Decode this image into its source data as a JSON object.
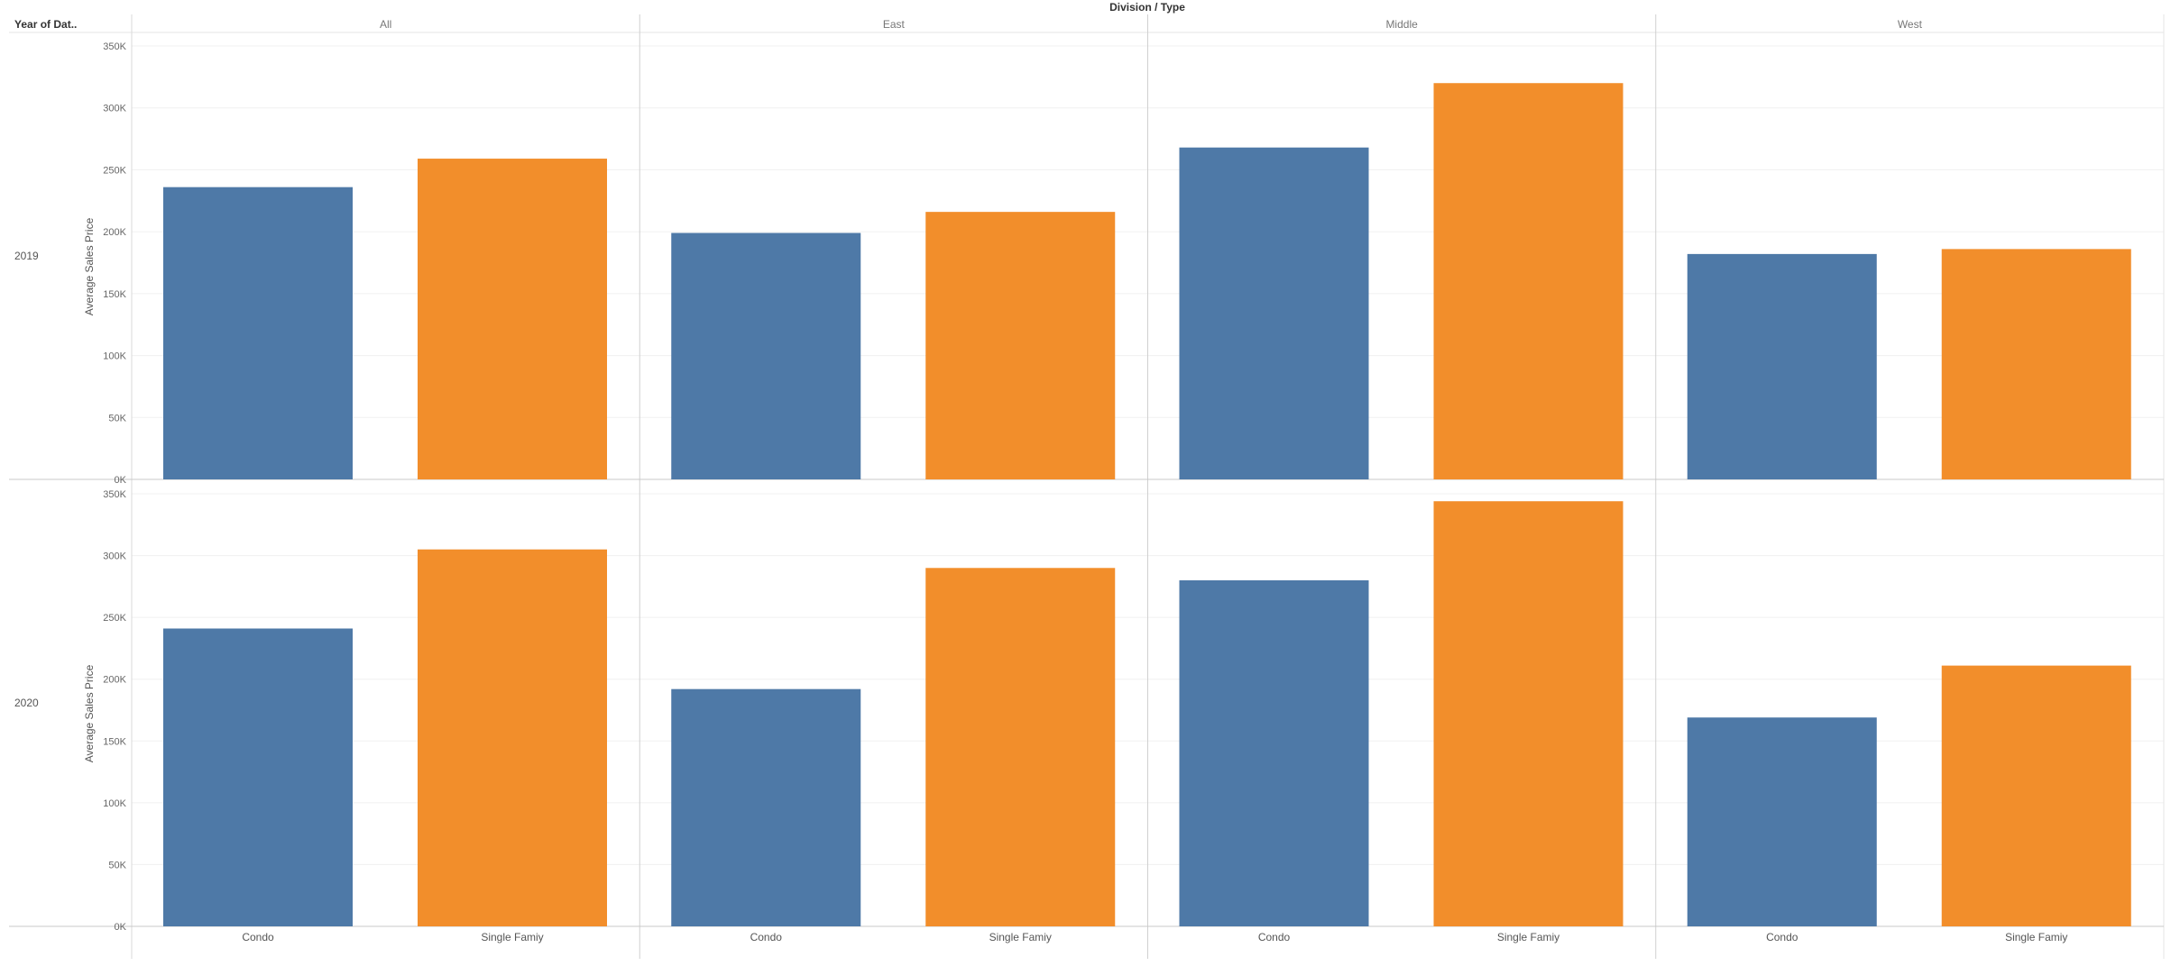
{
  "header": {
    "row_field_label": "Year of Dat..",
    "column_title": "Division / Type"
  },
  "chart_data": {
    "type": "bar",
    "title": "",
    "ylabel": "Average Sales Price",
    "xlabel": "",
    "ylim": [
      0,
      350000
    ],
    "y_ticks": [
      0,
      50000,
      100000,
      150000,
      200000,
      250000,
      300000,
      350000
    ],
    "y_tick_labels": [
      "0K",
      "50K",
      "100K",
      "150K",
      "200K",
      "250K",
      "300K",
      "350K"
    ],
    "grid": true,
    "divisions": [
      "All",
      "East",
      "Middle",
      "West"
    ],
    "types": [
      "Condo",
      "Single Famiy"
    ],
    "years": [
      "2019",
      "2020"
    ],
    "colors": {
      "Condo": "#4e79a7",
      "Single Famiy": "#f28e2b"
    },
    "values": {
      "2019": {
        "All": [
          236000,
          259000
        ],
        "East": [
          199000,
          216000
        ],
        "Middle": [
          268000,
          320000
        ],
        "West": [
          182000,
          186000
        ]
      },
      "2020": {
        "All": [
          241000,
          305000
        ],
        "East": [
          192000,
          290000
        ],
        "Middle": [
          280000,
          344000
        ],
        "West": [
          169000,
          211000
        ]
      }
    }
  }
}
